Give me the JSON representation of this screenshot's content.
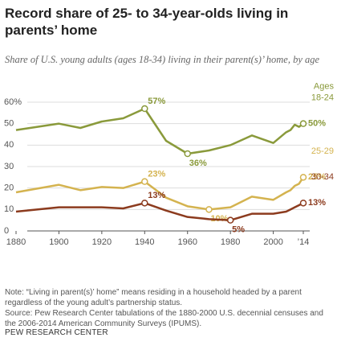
{
  "chart_data": {
    "type": "line",
    "title": "Record share of 25- to 34-year-olds living in parents’ home",
    "subtitle": "Share of U.S. young adults (ages 18-34) living in their parent(s)’ home, by age",
    "legend_title": "Ages",
    "x": [
      1880,
      1900,
      1910,
      1920,
      1930,
      1940,
      1950,
      1960,
      1970,
      1980,
      1990,
      2000,
      2006,
      2008,
      2010,
      2012,
      2014
    ],
    "series": [
      {
        "name": "18-24",
        "color": "#8a9a3b",
        "values": [
          47,
          50,
          48,
          51,
          52.5,
          57,
          42,
          36,
          37.5,
          40,
          44.5,
          41,
          46,
          47,
          49.5,
          48.5,
          50
        ],
        "value_labels": [
          null,
          null,
          null,
          null,
          null,
          "57%",
          null,
          "36%",
          null,
          null,
          null,
          null,
          null,
          null,
          null,
          null,
          "50%"
        ]
      },
      {
        "name": "25-29",
        "color": "#d4b34f",
        "values": [
          18,
          21.5,
          19,
          20.5,
          20,
          23,
          15.5,
          11.5,
          10,
          11,
          16,
          14.5,
          18,
          19,
          21,
          22,
          25
        ],
        "value_labels": [
          null,
          null,
          null,
          null,
          null,
          "23%",
          null,
          null,
          "10%",
          null,
          null,
          null,
          null,
          null,
          null,
          null,
          "25%"
        ]
      },
      {
        "name": "30-34",
        "color": "#8c3b1e",
        "values": [
          9,
          11,
          11,
          11,
          10.5,
          13,
          9.5,
          6.5,
          5.5,
          5,
          8,
          8,
          9,
          10,
          11,
          12,
          13
        ],
        "value_labels": [
          null,
          null,
          null,
          null,
          null,
          "13%",
          null,
          null,
          null,
          "5%",
          null,
          null,
          null,
          null,
          null,
          null,
          "13%"
        ]
      }
    ],
    "xlim": [
      1880,
      2014
    ],
    "xticks": [
      1880,
      1900,
      1920,
      1940,
      1960,
      1980,
      2000,
      {
        "value": 2014,
        "label": "’14"
      }
    ],
    "ylim": [
      0,
      60
    ],
    "yticks": [
      0,
      10,
      20,
      30,
      40,
      50,
      {
        "value": 60,
        "label": "60%"
      }
    ],
    "grid": true,
    "notes": [
      "Note: “Living in parent(s)’ home” means residing in a household headed by a parent regardless of the young adult’s partnership status.",
      "Source: Pew Research Center tabulations of the 1880-2000 U.S. decennial censuses and the 2006-2014 American Community Surveys (IPUMS)."
    ],
    "footer": "PEW RESEARCH CENTER"
  }
}
